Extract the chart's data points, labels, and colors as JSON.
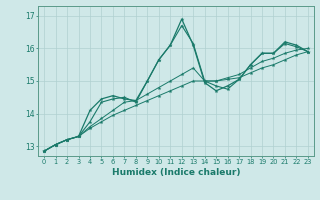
{
  "xlabel": "Humidex (Indice chaleur)",
  "xlim": [
    -0.5,
    23.5
  ],
  "ylim": [
    12.7,
    17.3
  ],
  "yticks": [
    13,
    14,
    15,
    16,
    17
  ],
  "xticks": [
    0,
    1,
    2,
    3,
    4,
    5,
    6,
    7,
    8,
    9,
    10,
    11,
    12,
    13,
    14,
    15,
    16,
    17,
    18,
    19,
    20,
    21,
    22,
    23
  ],
  "bg_color": "#cfe8e8",
  "line_color": "#1a7a6a",
  "grid_color": "#b0d0d0",
  "spine_color": "#5a9a8a",
  "series": {
    "line_max": [
      12.85,
      13.05,
      13.2,
      13.3,
      14.1,
      14.45,
      14.55,
      14.45,
      14.4,
      15.0,
      15.65,
      16.1,
      16.9,
      16.1,
      14.95,
      14.7,
      14.85,
      15.05,
      15.5,
      15.85,
      15.85,
      16.2,
      16.1,
      15.9
    ],
    "line_upper": [
      12.85,
      13.05,
      13.2,
      13.3,
      13.75,
      14.35,
      14.45,
      14.5,
      14.35,
      15.0,
      15.65,
      16.1,
      16.7,
      16.15,
      15.0,
      14.85,
      14.75,
      15.05,
      15.5,
      15.85,
      15.85,
      16.15,
      16.05,
      15.9
    ],
    "line_mid": [
      12.85,
      13.05,
      13.2,
      13.3,
      13.6,
      13.85,
      14.1,
      14.35,
      14.4,
      14.6,
      14.8,
      15.0,
      15.2,
      15.4,
      15.0,
      15.0,
      15.1,
      15.2,
      15.4,
      15.6,
      15.7,
      15.85,
      15.95,
      16.0
    ],
    "line_low": [
      12.85,
      13.05,
      13.2,
      13.3,
      13.55,
      13.75,
      13.95,
      14.1,
      14.25,
      14.4,
      14.55,
      14.7,
      14.85,
      15.0,
      15.0,
      15.0,
      15.05,
      15.1,
      15.25,
      15.4,
      15.5,
      15.65,
      15.8,
      15.9
    ]
  }
}
